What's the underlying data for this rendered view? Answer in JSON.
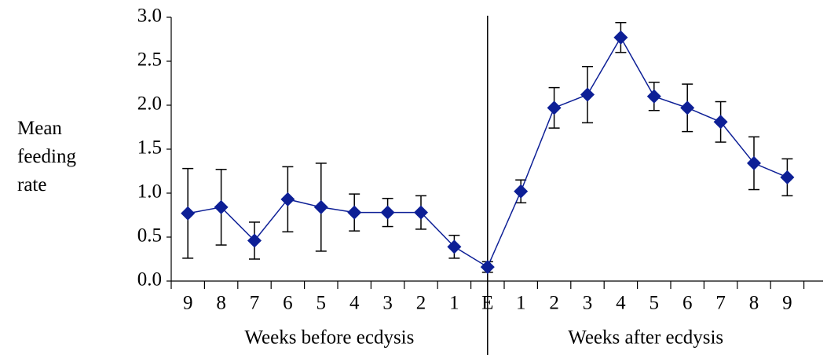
{
  "chart_data": {
    "type": "line",
    "ylabel": "Mean feeding rate",
    "categories": [
      "9",
      "8",
      "7",
      "6",
      "5",
      "4",
      "3",
      "2",
      "1",
      "E",
      "1",
      "2",
      "3",
      "4",
      "5",
      "6",
      "7",
      "8",
      "9"
    ],
    "groups": [
      "Weeks before ecdysis",
      "Weeks after ecdysis"
    ],
    "series": [
      {
        "color": "#0d1f96",
        "values": [
          0.77,
          0.84,
          0.46,
          0.93,
          0.84,
          0.78,
          0.78,
          0.78,
          0.39,
          0.16,
          1.02,
          1.97,
          2.12,
          2.77,
          2.1,
          1.97,
          1.81,
          1.34,
          1.18
        ],
        "errors": [
          0.51,
          0.43,
          0.21,
          0.37,
          0.5,
          0.21,
          0.16,
          0.19,
          0.13,
          0.06,
          0.13,
          0.23,
          0.32,
          0.17,
          0.16,
          0.27,
          0.23,
          0.3,
          0.21
        ]
      }
    ],
    "ylim": [
      0,
      3
    ],
    "yticks": [
      {
        "value": 0,
        "label": "0.0"
      },
      0.5,
      {
        "value": 1,
        "label": "1.0"
      },
      1.5,
      {
        "value": 2,
        "label": "2.0"
      },
      2.5,
      {
        "value": 3,
        "label": "3.0"
      }
    ]
  }
}
